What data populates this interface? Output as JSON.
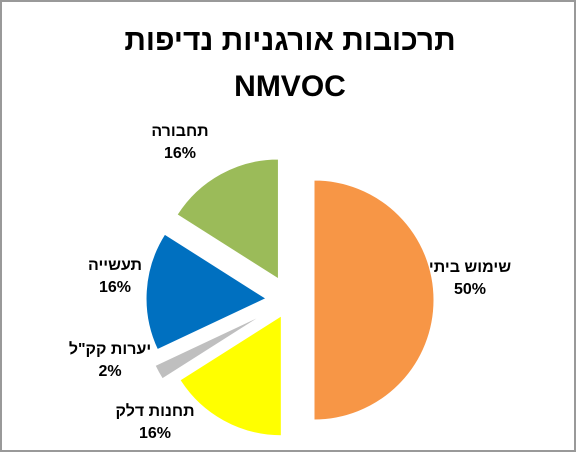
{
  "chart_data": {
    "type": "pie",
    "title_lines": [
      "תרכובות אורגניות נדיפות",
      "NMVOC"
    ],
    "categories": [
      "שימוש ביתי",
      "תחנות דלק",
      "יערות קק\"ל",
      "תעשייה",
      "תחבורה"
    ],
    "values": [
      50,
      16,
      2,
      16,
      16
    ],
    "value_labels": [
      "50%",
      "16%",
      "2%",
      "16%",
      "16%"
    ],
    "colors": [
      "#f79646",
      "#ffff00",
      "#bfbfbf",
      "#0070c0",
      "#9bbb59"
    ]
  }
}
